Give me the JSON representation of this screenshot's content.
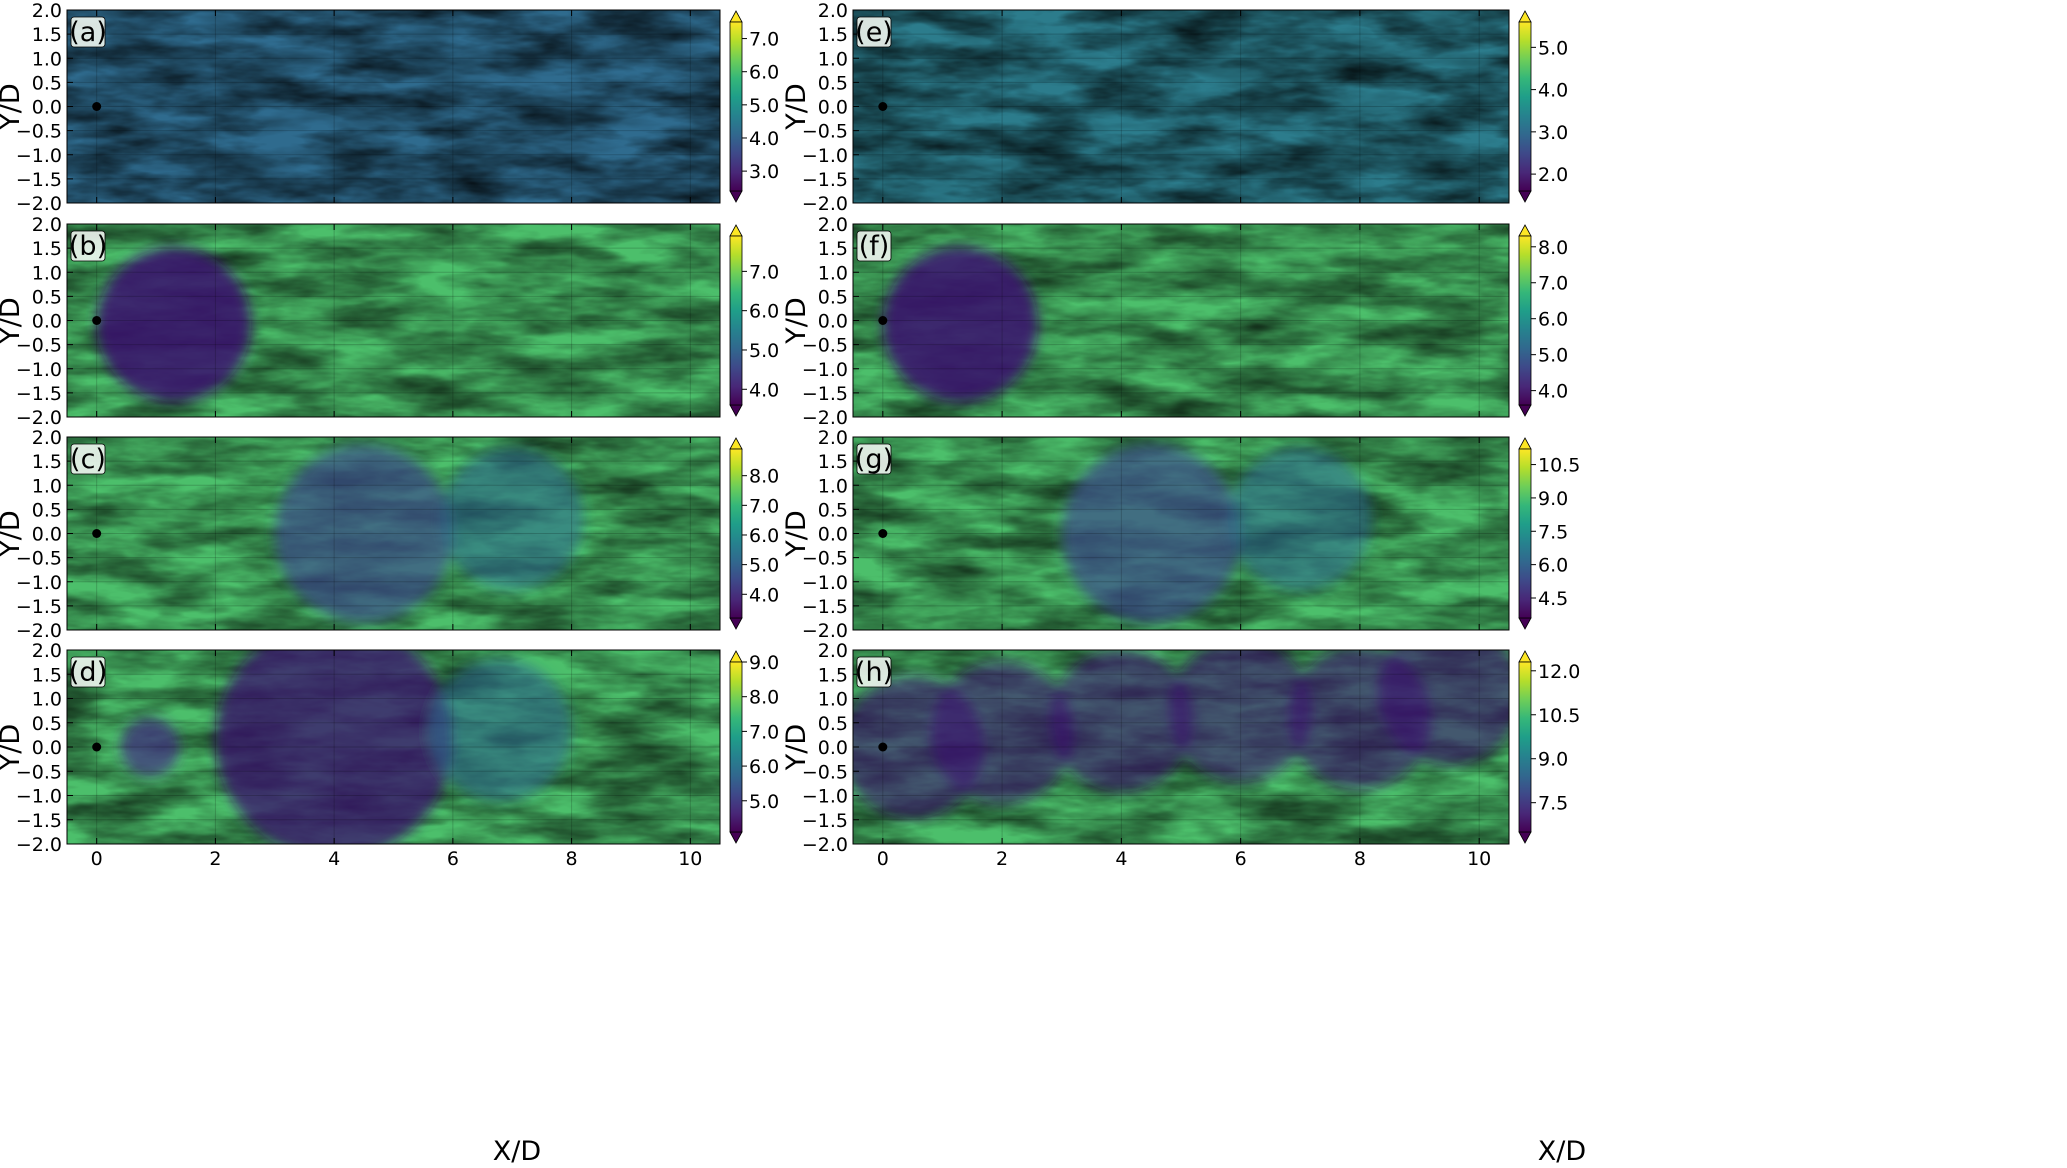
{
  "chart_data": {
    "type": "heatmap",
    "grid": true,
    "colormap": "viridis",
    "body_marker": "black vertical ellipse at X/D = 0",
    "xlim": [
      -0.5,
      10.5
    ],
    "ylim": [
      2.0,
      -2.0
    ],
    "xlabel": "X/D",
    "ylabel": "Y/D",
    "xticks": [
      0,
      2,
      4,
      6,
      8,
      10
    ],
    "xtick_labels": [
      "0",
      "2",
      "4",
      "6",
      "8",
      "10"
    ],
    "yticks": [
      -2.0,
      -1.5,
      -1.0,
      -0.5,
      0.0,
      0.5,
      1.0,
      1.5,
      2.0
    ],
    "ytick_labels": [
      "−2.0",
      "−1.5",
      "−1.0",
      "−0.5",
      "0.0",
      "0.5",
      "1.0",
      "1.5",
      "2.0"
    ],
    "panels": [
      {
        "tag": "(a)",
        "column": 0,
        "row": 0,
        "cbar_range": [
          2.4,
          7.5
        ],
        "cbar_ticks": [
          3.0,
          4.0,
          5.0,
          6.0,
          7.0
        ],
        "cbar_tick_labels": [
          "3.0",
          "4.0",
          "5.0",
          "6.0",
          "7.0"
        ],
        "wake": "none"
      },
      {
        "tag": "(b)",
        "column": 0,
        "row": 1,
        "cbar_range": [
          3.6,
          7.9
        ],
        "cbar_ticks": [
          4.0,
          5.0,
          6.0,
          7.0
        ],
        "cbar_tick_labels": [
          "4.0",
          "5.0",
          "6.0",
          "7.0"
        ],
        "wake": "short"
      },
      {
        "tag": "(c)",
        "column": 0,
        "row": 2,
        "cbar_range": [
          3.2,
          8.9
        ],
        "cbar_ticks": [
          4.0,
          5.0,
          6.0,
          7.0,
          8.0
        ],
        "cbar_tick_labels": [
          "4.0",
          "5.0",
          "6.0",
          "7.0",
          "8.0"
        ],
        "wake": "long"
      },
      {
        "tag": "(d)",
        "column": 0,
        "row": 3,
        "cbar_range": [
          4.1,
          9.0
        ],
        "cbar_ticks": [
          5.0,
          6.0,
          7.0,
          8.0,
          9.0
        ],
        "cbar_tick_labels": [
          "5.0",
          "6.0",
          "7.0",
          "8.0",
          "9.0"
        ],
        "wake": "blob"
      },
      {
        "tag": "(e)",
        "column": 1,
        "row": 0,
        "cbar_range": [
          1.6,
          5.6
        ],
        "cbar_ticks": [
          2.0,
          3.0,
          4.0,
          5.0
        ],
        "cbar_tick_labels": [
          "2.0",
          "3.0",
          "4.0",
          "5.0"
        ],
        "wake": "none"
      },
      {
        "tag": "(f)",
        "column": 1,
        "row": 1,
        "cbar_range": [
          3.6,
          8.3
        ],
        "cbar_ticks": [
          4.0,
          5.0,
          6.0,
          7.0,
          8.0
        ],
        "cbar_tick_labels": [
          "4.0",
          "5.0",
          "6.0",
          "7.0",
          "8.0"
        ],
        "wake": "short"
      },
      {
        "tag": "(g)",
        "column": 1,
        "row": 2,
        "cbar_range": [
          3.6,
          11.2
        ],
        "cbar_ticks": [
          4.5,
          6.0,
          7.5,
          9.0,
          10.5
        ],
        "cbar_tick_labels": [
          "4.5",
          "6.0",
          "7.5",
          "9.0",
          "10.5"
        ],
        "wake": "long"
      },
      {
        "tag": "(h)",
        "column": 1,
        "row": 3,
        "cbar_range": [
          6.5,
          12.3
        ],
        "cbar_ticks": [
          7.5,
          9.0,
          10.5,
          12.0
        ],
        "cbar_tick_labels": [
          "7.5",
          "9.0",
          "10.5",
          "12.0"
        ],
        "wake": "band"
      }
    ]
  }
}
